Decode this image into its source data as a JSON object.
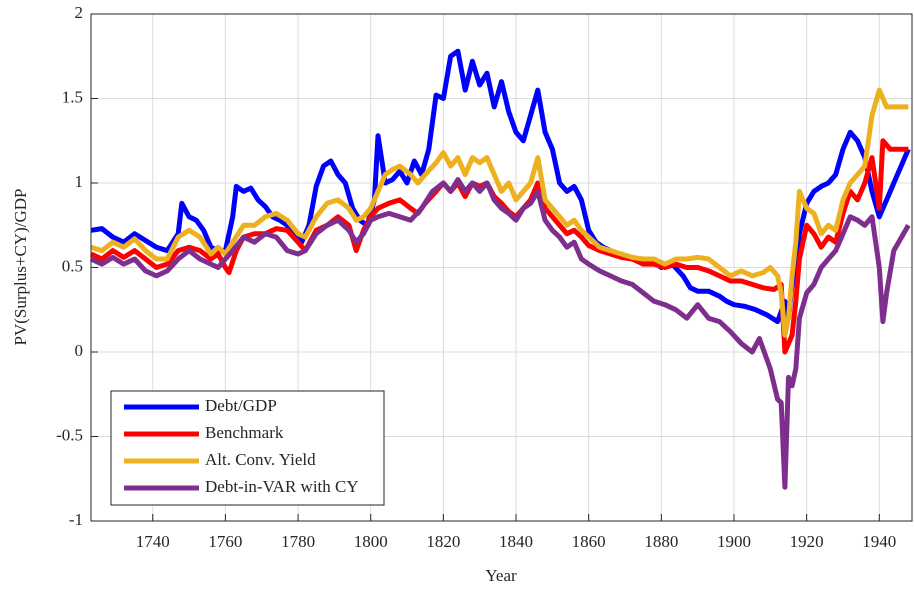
{
  "chart_data": {
    "type": "line",
    "xlabel": "Year",
    "ylabel": "PV(Surplus+CY)/GDP",
    "xlim": [
      1723,
      1949
    ],
    "ylim": [
      -1,
      2
    ],
    "xticks": [
      1740,
      1760,
      1780,
      1800,
      1820,
      1840,
      1860,
      1880,
      1900,
      1920,
      1940
    ],
    "yticks": [
      -1,
      -0.5,
      0,
      0.5,
      1,
      1.5,
      2
    ],
    "grid": true,
    "legend": "lower left",
    "series": [
      {
        "name": "Debt/GDP",
        "color": "#0000ff",
        "x": [
          1723,
          1726,
          1729,
          1732,
          1735,
          1738,
          1741,
          1744,
          1747,
          1748,
          1750,
          1752,
          1754,
          1756,
          1758,
          1760,
          1762,
          1763,
          1765,
          1767,
          1769,
          1771,
          1773,
          1775,
          1777,
          1779,
          1781,
          1783,
          1785,
          1787,
          1789,
          1791,
          1793,
          1795,
          1797,
          1799,
          1801,
          1802,
          1804,
          1806,
          1808,
          1810,
          1812,
          1814,
          1816,
          1818,
          1820,
          1822,
          1824,
          1826,
          1828,
          1830,
          1832,
          1834,
          1836,
          1838,
          1840,
          1842,
          1844,
          1846,
          1848,
          1850,
          1852,
          1854,
          1856,
          1858,
          1860,
          1862,
          1864,
          1866,
          1868,
          1870,
          1872,
          1875,
          1878,
          1880,
          1883,
          1886,
          1888,
          1890,
          1893,
          1896,
          1898,
          1900,
          1903,
          1906,
          1909,
          1912,
          1914,
          1915,
          1916,
          1917,
          1918,
          1920,
          1922,
          1924,
          1926,
          1928,
          1930,
          1932,
          1934,
          1936,
          1938,
          1940,
          1942,
          1944,
          1948
        ],
        "values": [
          0.72,
          0.73,
          0.68,
          0.65,
          0.7,
          0.66,
          0.62,
          0.6,
          0.7,
          0.88,
          0.8,
          0.78,
          0.72,
          0.62,
          0.6,
          0.6,
          0.8,
          0.98,
          0.95,
          0.97,
          0.9,
          0.86,
          0.8,
          0.78,
          0.75,
          0.7,
          0.65,
          0.75,
          0.98,
          1.1,
          1.13,
          1.05,
          1.0,
          0.85,
          0.78,
          0.75,
          0.9,
          1.28,
          1.0,
          1.02,
          1.07,
          1.0,
          1.13,
          1.05,
          1.2,
          1.52,
          1.5,
          1.75,
          1.78,
          1.55,
          1.72,
          1.58,
          1.65,
          1.45,
          1.6,
          1.42,
          1.3,
          1.25,
          1.4,
          1.55,
          1.3,
          1.2,
          1.0,
          0.95,
          0.98,
          0.9,
          0.72,
          0.65,
          0.62,
          0.6,
          0.58,
          0.57,
          0.55,
          0.55,
          0.53,
          0.5,
          0.52,
          0.45,
          0.38,
          0.36,
          0.36,
          0.33,
          0.3,
          0.28,
          0.27,
          0.25,
          0.22,
          0.18,
          0.3,
          0.2,
          0.4,
          0.45,
          0.7,
          0.88,
          0.95,
          0.98,
          1.0,
          1.05,
          1.2,
          1.3,
          1.25,
          1.15,
          0.95,
          0.8,
          0.9,
          1.0,
          1.2
        ]
      },
      {
        "name": "Benchmark",
        "color": "#ff0000",
        "x": [
          1723,
          1726,
          1729,
          1732,
          1735,
          1738,
          1741,
          1744,
          1747,
          1750,
          1753,
          1756,
          1758,
          1760,
          1761,
          1763,
          1765,
          1768,
          1771,
          1774,
          1777,
          1780,
          1782,
          1785,
          1788,
          1791,
          1794,
          1796,
          1798,
          1800,
          1802,
          1805,
          1808,
          1811,
          1813,
          1815,
          1818,
          1820,
          1822,
          1824,
          1826,
          1828,
          1830,
          1832,
          1834,
          1836,
          1838,
          1840,
          1842,
          1844,
          1846,
          1848,
          1850,
          1852,
          1854,
          1856,
          1858,
          1860,
          1863,
          1866,
          1869,
          1872,
          1875,
          1878,
          1881,
          1884,
          1887,
          1890,
          1893,
          1896,
          1899,
          1902,
          1905,
          1908,
          1911,
          1913,
          1914,
          1915,
          1916,
          1917,
          1918,
          1919,
          1920,
          1922,
          1924,
          1926,
          1928,
          1930,
          1932,
          1934,
          1936,
          1938,
          1940,
          1941,
          1943,
          1948
        ],
        "values": [
          0.58,
          0.55,
          0.6,
          0.56,
          0.6,
          0.55,
          0.5,
          0.52,
          0.6,
          0.62,
          0.6,
          0.55,
          0.58,
          0.5,
          0.47,
          0.6,
          0.68,
          0.7,
          0.7,
          0.73,
          0.72,
          0.65,
          0.6,
          0.72,
          0.75,
          0.8,
          0.75,
          0.6,
          0.72,
          0.8,
          0.85,
          0.88,
          0.9,
          0.85,
          0.82,
          0.88,
          0.95,
          1.0,
          0.95,
          1.0,
          0.92,
          1.0,
          0.98,
          1.0,
          0.92,
          0.88,
          0.83,
          0.8,
          0.85,
          0.9,
          1.0,
          0.85,
          0.8,
          0.75,
          0.7,
          0.72,
          0.68,
          0.63,
          0.6,
          0.58,
          0.56,
          0.55,
          0.52,
          0.52,
          0.5,
          0.52,
          0.5,
          0.5,
          0.48,
          0.45,
          0.42,
          0.42,
          0.4,
          0.38,
          0.37,
          0.4,
          0.0,
          0.05,
          0.1,
          0.3,
          0.55,
          0.65,
          0.75,
          0.7,
          0.62,
          0.68,
          0.65,
          0.82,
          0.95,
          0.9,
          1.0,
          1.15,
          0.85,
          1.25,
          1.2,
          1.2
        ]
      },
      {
        "name": "Alt. Conv. Yield",
        "color": "#edb120",
        "x": [
          1723,
          1726,
          1729,
          1732,
          1735,
          1738,
          1741,
          1744,
          1747,
          1750,
          1753,
          1756,
          1758,
          1760,
          1762,
          1765,
          1768,
          1771,
          1774,
          1777,
          1780,
          1782,
          1785,
          1788,
          1791,
          1794,
          1796,
          1798,
          1800,
          1802,
          1804,
          1806,
          1808,
          1811,
          1813,
          1815,
          1818,
          1820,
          1822,
          1824,
          1826,
          1828,
          1830,
          1832,
          1834,
          1836,
          1838,
          1840,
          1842,
          1844,
          1846,
          1848,
          1850,
          1852,
          1854,
          1856,
          1858,
          1860,
          1863,
          1866,
          1869,
          1872,
          1875,
          1878,
          1881,
          1884,
          1887,
          1890,
          1893,
          1896,
          1899,
          1902,
          1905,
          1908,
          1910,
          1912,
          1913,
          1914,
          1915,
          1916,
          1917,
          1918,
          1919,
          1920,
          1922,
          1924,
          1926,
          1928,
          1930,
          1932,
          1934,
          1936,
          1938,
          1940,
          1942,
          1944,
          1948
        ],
        "values": [
          0.62,
          0.6,
          0.65,
          0.62,
          0.67,
          0.6,
          0.55,
          0.55,
          0.68,
          0.72,
          0.68,
          0.58,
          0.62,
          0.58,
          0.65,
          0.75,
          0.75,
          0.8,
          0.82,
          0.78,
          0.7,
          0.68,
          0.8,
          0.88,
          0.9,
          0.85,
          0.78,
          0.8,
          0.85,
          0.95,
          1.05,
          1.08,
          1.1,
          1.05,
          1.0,
          1.05,
          1.12,
          1.18,
          1.1,
          1.15,
          1.05,
          1.15,
          1.12,
          1.15,
          1.05,
          0.95,
          1.0,
          0.9,
          0.95,
          1.0,
          1.15,
          0.9,
          0.85,
          0.8,
          0.75,
          0.78,
          0.72,
          0.68,
          0.62,
          0.6,
          0.58,
          0.56,
          0.55,
          0.55,
          0.52,
          0.55,
          0.55,
          0.56,
          0.55,
          0.5,
          0.45,
          0.48,
          0.45,
          0.47,
          0.5,
          0.45,
          0.35,
          0.1,
          0.2,
          0.45,
          0.65,
          0.95,
          0.9,
          0.85,
          0.82,
          0.7,
          0.75,
          0.72,
          0.9,
          1.0,
          1.05,
          1.1,
          1.4,
          1.55,
          1.45,
          1.45,
          1.45
        ]
      },
      {
        "name": "Debt-in-VAR with CY",
        "color": "#7e2f8e",
        "x": [
          1723,
          1726,
          1729,
          1732,
          1735,
          1738,
          1741,
          1744,
          1747,
          1750,
          1753,
          1756,
          1758,
          1760,
          1762,
          1765,
          1768,
          1771,
          1774,
          1777,
          1780,
          1782,
          1785,
          1788,
          1791,
          1794,
          1796,
          1798,
          1800,
          1802,
          1805,
          1808,
          1811,
          1814,
          1817,
          1820,
          1822,
          1824,
          1826,
          1828,
          1830,
          1832,
          1834,
          1836,
          1838,
          1840,
          1842,
          1844,
          1846,
          1848,
          1850,
          1852,
          1854,
          1856,
          1858,
          1860,
          1863,
          1866,
          1869,
          1872,
          1875,
          1878,
          1881,
          1884,
          1887,
          1890,
          1893,
          1896,
          1899,
          1902,
          1905,
          1907,
          1910,
          1912,
          1913,
          1914,
          1915,
          1916,
          1917,
          1918,
          1920,
          1922,
          1924,
          1926,
          1928,
          1930,
          1932,
          1934,
          1936,
          1938,
          1940,
          1941,
          1942,
          1944,
          1948
        ],
        "values": [
          0.55,
          0.52,
          0.56,
          0.52,
          0.55,
          0.48,
          0.45,
          0.48,
          0.55,
          0.6,
          0.55,
          0.52,
          0.5,
          0.55,
          0.6,
          0.68,
          0.65,
          0.7,
          0.68,
          0.6,
          0.58,
          0.6,
          0.7,
          0.75,
          0.78,
          0.72,
          0.65,
          0.7,
          0.78,
          0.8,
          0.82,
          0.8,
          0.78,
          0.85,
          0.95,
          1.0,
          0.95,
          1.02,
          0.95,
          1.0,
          0.95,
          1.0,
          0.9,
          0.85,
          0.82,
          0.78,
          0.85,
          0.88,
          0.95,
          0.78,
          0.72,
          0.68,
          0.62,
          0.65,
          0.55,
          0.52,
          0.48,
          0.45,
          0.42,
          0.4,
          0.35,
          0.3,
          0.28,
          0.25,
          0.2,
          0.28,
          0.2,
          0.18,
          0.12,
          0.05,
          0.0,
          0.08,
          -0.1,
          -0.28,
          -0.3,
          -0.8,
          -0.15,
          -0.2,
          -0.1,
          0.2,
          0.35,
          0.4,
          0.5,
          0.55,
          0.6,
          0.7,
          0.8,
          0.78,
          0.75,
          0.8,
          0.5,
          0.18,
          0.35,
          0.6,
          0.75
        ]
      }
    ]
  }
}
